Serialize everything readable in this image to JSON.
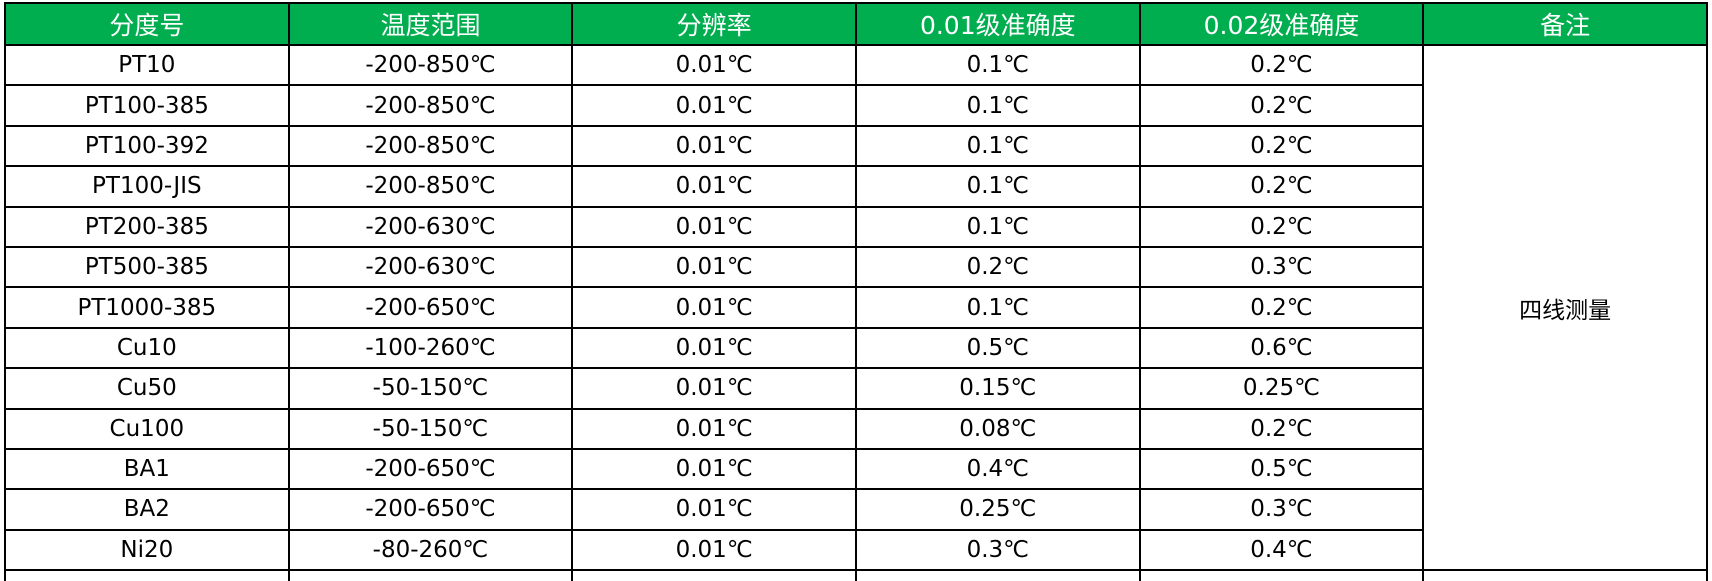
{
  "header_color": "#00ad4f",
  "columns": [
    "分度号",
    "温度范围",
    "分辨率",
    "0.01级准确度",
    "0.02级准确度",
    "备注"
  ],
  "rows": [
    [
      "PT10",
      "-200-850℃",
      "0.01℃",
      "0.1℃",
      "0.2℃"
    ],
    [
      "PT100-385",
      "-200-850℃",
      "0.01℃",
      "0.1℃",
      "0.2℃"
    ],
    [
      "PT100-392",
      "-200-850℃",
      "0.01℃",
      "0.1℃",
      "0.2℃"
    ],
    [
      "PT100-JIS",
      "-200-850℃",
      "0.01℃",
      "0.1℃",
      "0.2℃"
    ],
    [
      "PT200-385",
      "-200-630℃",
      "0.01℃",
      "0.1℃",
      "0.2℃"
    ],
    [
      "PT500-385",
      "-200-630℃",
      "0.01℃",
      "0.2℃",
      "0.3℃"
    ],
    [
      "PT1000-385",
      "-200-650℃",
      "0.01℃",
      "0.1℃",
      "0.2℃"
    ],
    [
      "Cu10",
      "-100-260℃",
      "0.01℃",
      "0.5℃",
      "0.6℃"
    ],
    [
      "Cu50",
      "-50-150℃",
      "0.01℃",
      "0.15℃",
      "0.25℃"
    ],
    [
      "Cu100",
      "-50-150℃",
      "0.01℃",
      "0.08℃",
      "0.2℃"
    ],
    [
      "BA1",
      "-200-650℃",
      "0.01℃",
      "0.4℃",
      "0.5℃"
    ],
    [
      "BA2",
      "-200-650℃",
      "0.01℃",
      "0.25℃",
      "0.3℃"
    ],
    [
      "Ni20",
      "-80-260℃",
      "0.01℃",
      "0.3℃",
      "0.4℃"
    ]
  ],
  "note": "四线测量"
}
